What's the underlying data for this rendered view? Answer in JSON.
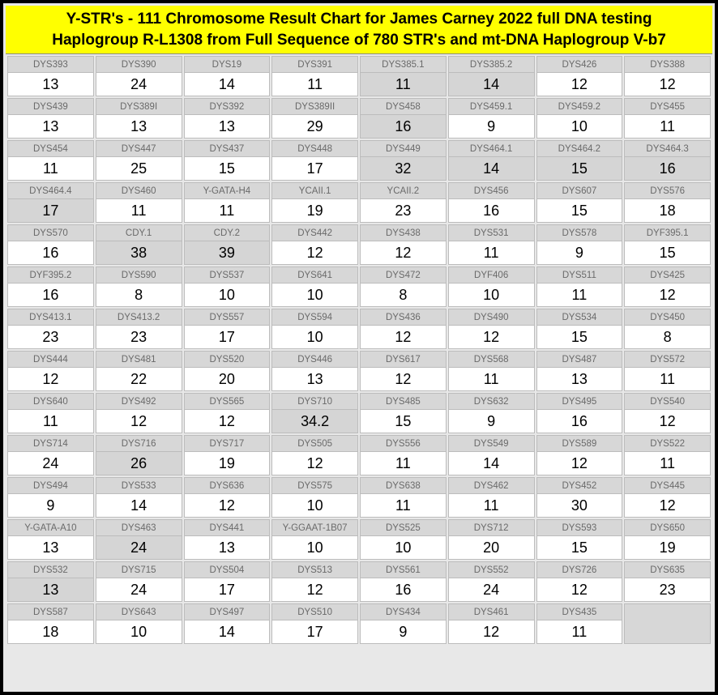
{
  "header": {
    "line1": "Y-STR's - 111 Chromosome Result Chart for James Carney 2022 full DNA testing",
    "line2": "Haplogroup R-L1308 from Full Sequence of 780 STR's and mt-DNA Haplogroup V-b7"
  },
  "colors": {
    "header_bg": "#ffff00",
    "label_bg": "#d7d7d7",
    "value_white": "#ffffff",
    "value_gray": "#d5d5d5",
    "border": "#bcbcbc",
    "outer_border": "#000000"
  },
  "markers": [
    {
      "label": "DYS393",
      "value": "13",
      "hl": false
    },
    {
      "label": "DYS390",
      "value": "24",
      "hl": false
    },
    {
      "label": "DYS19",
      "value": "14",
      "hl": false
    },
    {
      "label": "DYS391",
      "value": "11",
      "hl": false
    },
    {
      "label": "DYS385.1",
      "value": "11",
      "hl": true
    },
    {
      "label": "DYS385.2",
      "value": "14",
      "hl": true
    },
    {
      "label": "DYS426",
      "value": "12",
      "hl": false
    },
    {
      "label": "DYS388",
      "value": "12",
      "hl": false
    },
    {
      "label": "DYS439",
      "value": "13",
      "hl": false
    },
    {
      "label": "DYS389I",
      "value": "13",
      "hl": false
    },
    {
      "label": "DYS392",
      "value": "13",
      "hl": false
    },
    {
      "label": "DYS389II",
      "value": "29",
      "hl": false
    },
    {
      "label": "DYS458",
      "value": "16",
      "hl": true
    },
    {
      "label": "DYS459.1",
      "value": "9",
      "hl": false
    },
    {
      "label": "DYS459.2",
      "value": "10",
      "hl": false
    },
    {
      "label": "DYS455",
      "value": "11",
      "hl": false
    },
    {
      "label": "DYS454",
      "value": "11",
      "hl": false
    },
    {
      "label": "DYS447",
      "value": "25",
      "hl": false
    },
    {
      "label": "DYS437",
      "value": "15",
      "hl": false
    },
    {
      "label": "DYS448",
      "value": "17",
      "hl": false
    },
    {
      "label": "DYS449",
      "value": "32",
      "hl": true
    },
    {
      "label": "DYS464.1",
      "value": "14",
      "hl": true
    },
    {
      "label": "DYS464.2",
      "value": "15",
      "hl": true
    },
    {
      "label": "DYS464.3",
      "value": "16",
      "hl": true
    },
    {
      "label": "DYS464.4",
      "value": "17",
      "hl": true
    },
    {
      "label": "DYS460",
      "value": "11",
      "hl": false
    },
    {
      "label": "Y-GATA-H4",
      "value": "11",
      "hl": false
    },
    {
      "label": "YCAII.1",
      "value": "19",
      "hl": false
    },
    {
      "label": "YCAII.2",
      "value": "23",
      "hl": false
    },
    {
      "label": "DYS456",
      "value": "16",
      "hl": false
    },
    {
      "label": "DYS607",
      "value": "15",
      "hl": false
    },
    {
      "label": "DYS576",
      "value": "18",
      "hl": false
    },
    {
      "label": "DYS570",
      "value": "16",
      "hl": false
    },
    {
      "label": "CDY.1",
      "value": "38",
      "hl": true
    },
    {
      "label": "CDY.2",
      "value": "39",
      "hl": true
    },
    {
      "label": "DYS442",
      "value": "12",
      "hl": false
    },
    {
      "label": "DYS438",
      "value": "12",
      "hl": false
    },
    {
      "label": "DYS531",
      "value": "11",
      "hl": false
    },
    {
      "label": "DYS578",
      "value": "9",
      "hl": false
    },
    {
      "label": "DYF395.1",
      "value": "15",
      "hl": false
    },
    {
      "label": "DYF395.2",
      "value": "16",
      "hl": false
    },
    {
      "label": "DYS590",
      "value": "8",
      "hl": false
    },
    {
      "label": "DYS537",
      "value": "10",
      "hl": false
    },
    {
      "label": "DYS641",
      "value": "10",
      "hl": false
    },
    {
      "label": "DYS472",
      "value": "8",
      "hl": false
    },
    {
      "label": "DYF406",
      "value": "10",
      "hl": false
    },
    {
      "label": "DYS511",
      "value": "11",
      "hl": false
    },
    {
      "label": "DYS425",
      "value": "12",
      "hl": false
    },
    {
      "label": "DYS413.1",
      "value": "23",
      "hl": false
    },
    {
      "label": "DYS413.2",
      "value": "23",
      "hl": false
    },
    {
      "label": "DYS557",
      "value": "17",
      "hl": false
    },
    {
      "label": "DYS594",
      "value": "10",
      "hl": false
    },
    {
      "label": "DYS436",
      "value": "12",
      "hl": false
    },
    {
      "label": "DYS490",
      "value": "12",
      "hl": false
    },
    {
      "label": "DYS534",
      "value": "15",
      "hl": false
    },
    {
      "label": "DYS450",
      "value": "8",
      "hl": false
    },
    {
      "label": "DYS444",
      "value": "12",
      "hl": false
    },
    {
      "label": "DYS481",
      "value": "22",
      "hl": false
    },
    {
      "label": "DYS520",
      "value": "20",
      "hl": false
    },
    {
      "label": "DYS446",
      "value": "13",
      "hl": false
    },
    {
      "label": "DYS617",
      "value": "12",
      "hl": false
    },
    {
      "label": "DYS568",
      "value": "11",
      "hl": false
    },
    {
      "label": "DYS487",
      "value": "13",
      "hl": false
    },
    {
      "label": "DYS572",
      "value": "11",
      "hl": false
    },
    {
      "label": "DYS640",
      "value": "11",
      "hl": false
    },
    {
      "label": "DYS492",
      "value": "12",
      "hl": false
    },
    {
      "label": "DYS565",
      "value": "12",
      "hl": false
    },
    {
      "label": "DYS710",
      "value": "34.2",
      "hl": true
    },
    {
      "label": "DYS485",
      "value": "15",
      "hl": false
    },
    {
      "label": "DYS632",
      "value": "9",
      "hl": false
    },
    {
      "label": "DYS495",
      "value": "16",
      "hl": false
    },
    {
      "label": "DYS540",
      "value": "12",
      "hl": false
    },
    {
      "label": "DYS714",
      "value": "24",
      "hl": false
    },
    {
      "label": "DYS716",
      "value": "26",
      "hl": true
    },
    {
      "label": "DYS717",
      "value": "19",
      "hl": false
    },
    {
      "label": "DYS505",
      "value": "12",
      "hl": false
    },
    {
      "label": "DYS556",
      "value": "11",
      "hl": false
    },
    {
      "label": "DYS549",
      "value": "14",
      "hl": false
    },
    {
      "label": "DYS589",
      "value": "12",
      "hl": false
    },
    {
      "label": "DYS522",
      "value": "11",
      "hl": false
    },
    {
      "label": "DYS494",
      "value": "9",
      "hl": false
    },
    {
      "label": "DYS533",
      "value": "14",
      "hl": false
    },
    {
      "label": "DYS636",
      "value": "12",
      "hl": false
    },
    {
      "label": "DYS575",
      "value": "10",
      "hl": false
    },
    {
      "label": "DYS638",
      "value": "11",
      "hl": false
    },
    {
      "label": "DYS462",
      "value": "11",
      "hl": false
    },
    {
      "label": "DYS452",
      "value": "30",
      "hl": false
    },
    {
      "label": "DYS445",
      "value": "12",
      "hl": false
    },
    {
      "label": "Y-GATA-A10",
      "value": "13",
      "hl": false
    },
    {
      "label": "DYS463",
      "value": "24",
      "hl": true
    },
    {
      "label": "DYS441",
      "value": "13",
      "hl": false
    },
    {
      "label": "Y-GGAAT-1B07",
      "value": "10",
      "hl": false
    },
    {
      "label": "DYS525",
      "value": "10",
      "hl": false
    },
    {
      "label": "DYS712",
      "value": "20",
      "hl": false
    },
    {
      "label": "DYS593",
      "value": "15",
      "hl": false
    },
    {
      "label": "DYS650",
      "value": "19",
      "hl": false
    },
    {
      "label": "DYS532",
      "value": "13",
      "hl": true
    },
    {
      "label": "DYS715",
      "value": "24",
      "hl": false
    },
    {
      "label": "DYS504",
      "value": "17",
      "hl": false
    },
    {
      "label": "DYS513",
      "value": "12",
      "hl": false
    },
    {
      "label": "DYS561",
      "value": "16",
      "hl": false
    },
    {
      "label": "DYS552",
      "value": "24",
      "hl": false
    },
    {
      "label": "DYS726",
      "value": "12",
      "hl": false
    },
    {
      "label": "DYS635",
      "value": "23",
      "hl": false
    },
    {
      "label": "DYS587",
      "value": "18",
      "hl": false
    },
    {
      "label": "DYS643",
      "value": "10",
      "hl": false
    },
    {
      "label": "DYS497",
      "value": "14",
      "hl": false
    },
    {
      "label": "DYS510",
      "value": "17",
      "hl": false
    },
    {
      "label": "DYS434",
      "value": "9",
      "hl": false
    },
    {
      "label": "DYS461",
      "value": "12",
      "hl": false
    },
    {
      "label": "DYS435",
      "value": "11",
      "hl": false
    }
  ]
}
